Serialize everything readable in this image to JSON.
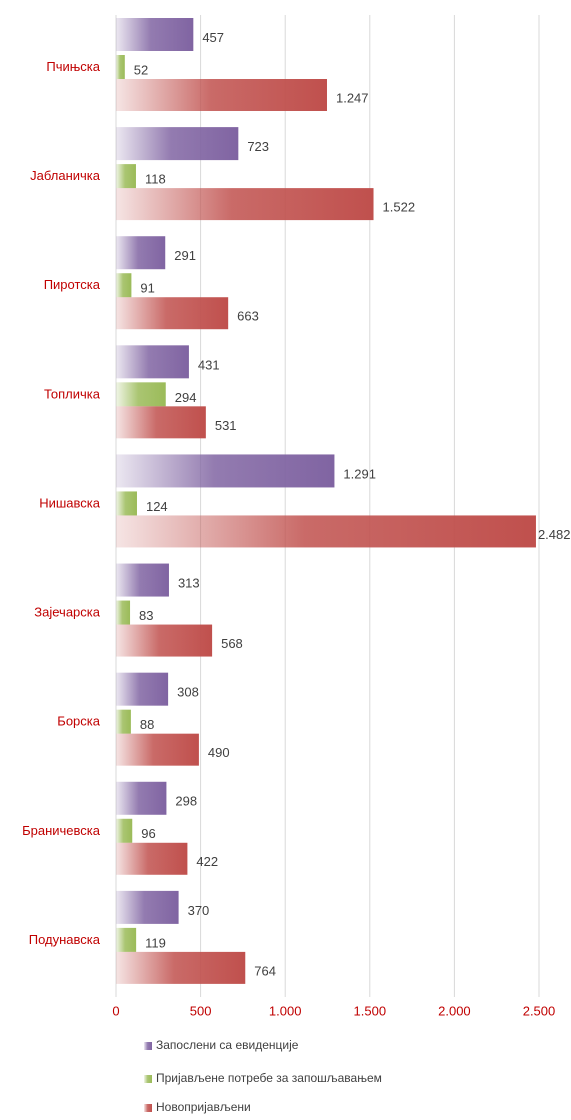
{
  "chart_data": {
    "type": "bar",
    "orientation": "horizontal",
    "categories": [
      "Пчињска",
      "Јабланичка",
      "Пиротска",
      "Топличка",
      "Нишавска",
      "Зајечарска",
      "Борска",
      "Браничевска",
      "Подунавска"
    ],
    "series": [
      {
        "name": "Запослени са евиденције",
        "color": "#8064a2",
        "values": [
          457,
          723,
          291,
          431,
          1291,
          313,
          308,
          298,
          370
        ],
        "value_labels": [
          "457",
          "723",
          "291",
          "431",
          "1.291",
          "313",
          "308",
          "298",
          "370"
        ]
      },
      {
        "name": "Пријављене потребе за запошљавањем",
        "color": "#9bbb59",
        "values": [
          52,
          118,
          91,
          294,
          124,
          83,
          88,
          96,
          119
        ]
      },
      {
        "name": "Новопријављени",
        "color": "#c0504d",
        "values": [
          1247,
          1522,
          663,
          531,
          2482,
          568,
          490,
          422,
          764
        ],
        "value_labels": [
          "1.247",
          "1.522",
          "663",
          "531",
          "2.482",
          "568",
          "490",
          "422",
          "764"
        ]
      }
    ],
    "xlim": [
      0,
      2500
    ],
    "xticks": [
      0,
      500,
      {
        "value": 1000,
        "label": "1.000"
      },
      {
        "value": 1500,
        "label": "1.500"
      },
      {
        "value": 2000,
        "label": "2.000"
      },
      {
        "value": 2500,
        "label": "2.500"
      }
    ],
    "grid": true,
    "legend": "bottom"
  }
}
